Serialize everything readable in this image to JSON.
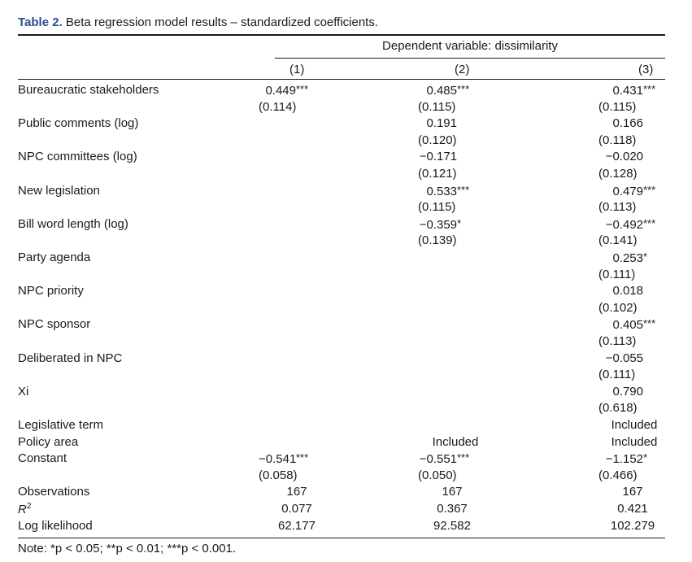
{
  "caption": {
    "label": "Table 2.",
    "text": "Beta regression model results – standardized coefficients."
  },
  "header": {
    "dependent": "Dependent variable: dissimilarity",
    "columns": [
      "(1)",
      "(2)",
      "(3)"
    ]
  },
  "rows": [
    {
      "label": "Bureaucratic stakeholders",
      "c1": "0.449",
      "s1": "***",
      "se1": "(0.114)",
      "c2": "0.485",
      "s2": "***",
      "se2": "(0.115)",
      "c3": "0.431",
      "s3": "***",
      "se3": "(0.115)"
    },
    {
      "label": "Public comments (log)",
      "c1": "",
      "s1": "",
      "se1": "",
      "c2": "0.191",
      "s2": "",
      "se2": "(0.120)",
      "c3": "0.166",
      "s3": "",
      "se3": "(0.118)"
    },
    {
      "label": "NPC committees (log)",
      "c1": "",
      "s1": "",
      "se1": "",
      "c2": "−0.171",
      "s2": "",
      "se2": "(0.121)",
      "c3": "−0.020",
      "s3": "",
      "se3": "(0.128)"
    },
    {
      "label": "New legislation",
      "c1": "",
      "s1": "",
      "se1": "",
      "c2": "0.533",
      "s2": "***",
      "se2": "(0.115)",
      "c3": "0.479",
      "s3": "***",
      "se3": "(0.113)"
    },
    {
      "label": "Bill word length (log)",
      "c1": "",
      "s1": "",
      "se1": "",
      "c2": "−0.359",
      "s2": "*",
      "se2": "(0.139)",
      "c3": "−0.492",
      "s3": "***",
      "se3": "(0.141)"
    },
    {
      "label": "Party agenda",
      "c1": "",
      "s1": "",
      "se1": "",
      "c2": "",
      "s2": "",
      "se2": "",
      "c3": "0.253",
      "s3": "*",
      "se3": "(0.111)"
    },
    {
      "label": "NPC priority",
      "c1": "",
      "s1": "",
      "se1": "",
      "c2": "",
      "s2": "",
      "se2": "",
      "c3": "0.018",
      "s3": "",
      "se3": "(0.102)"
    },
    {
      "label": "NPC sponsor",
      "c1": "",
      "s1": "",
      "se1": "",
      "c2": "",
      "s2": "",
      "se2": "",
      "c3": "0.405",
      "s3": "***",
      "se3": "(0.113)"
    },
    {
      "label": "Deliberated in NPC",
      "c1": "",
      "s1": "",
      "se1": "",
      "c2": "",
      "s2": "",
      "se2": "",
      "c3": "−0.055",
      "s3": "",
      "se3": "(0.111)"
    },
    {
      "label": "Xi",
      "c1": "",
      "s1": "",
      "se1": "",
      "c2": "",
      "s2": "",
      "se2": "",
      "c3": "0.790",
      "s3": "",
      "se3": "(0.618)"
    }
  ],
  "fixed": [
    {
      "label": "Legislative term",
      "c1": "",
      "c2": "",
      "c3": "Included"
    },
    {
      "label": "Policy area",
      "c1": "",
      "c2": "Included",
      "c3": "Included"
    }
  ],
  "constant": {
    "label": "Constant",
    "c1": "−0.541",
    "s1": "***",
    "se1": "(0.058)",
    "c2": "−0.551",
    "s2": "***",
    "se2": "(0.050)",
    "c3": "−1.152",
    "s3": "*",
    "se3": "(0.466)"
  },
  "stats": [
    {
      "label": "Observations",
      "c1": "167",
      "c2": "167",
      "c3": "167"
    },
    {
      "label": "R",
      "sup": "2",
      "c1": "0.077",
      "c2": "0.367",
      "c3": "0.421"
    },
    {
      "label": "Log likelihood",
      "c1": "62.177",
      "c2": "92.582",
      "c3": "102.279"
    }
  ],
  "note": "Note: *p < 0.05; **p < 0.01; ***p < 0.001."
}
